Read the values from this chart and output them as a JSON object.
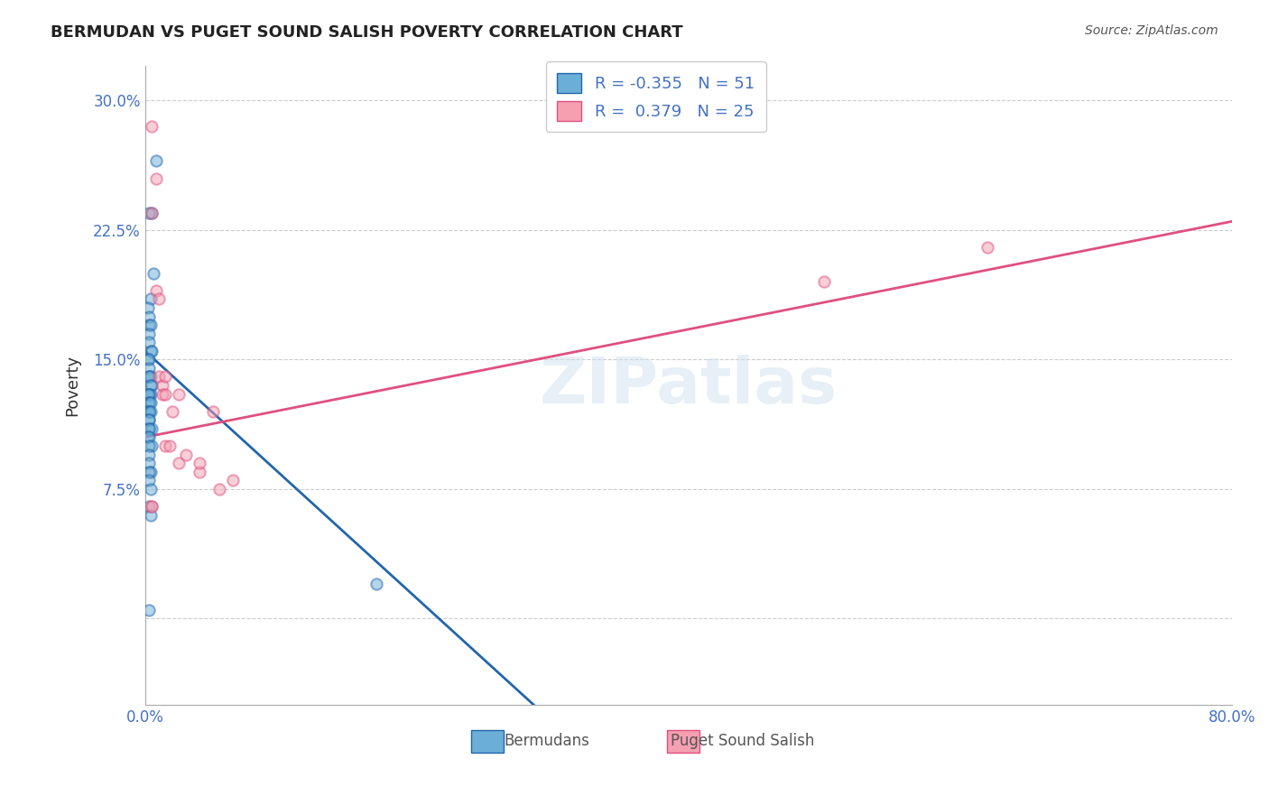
{
  "title": "BERMUDAN VS PUGET SOUND SALISH POVERTY CORRELATION CHART",
  "source": "Source: ZipAtlas.com",
  "xlabel": "",
  "ylabel": "Poverty",
  "xlim": [
    0.0,
    0.8
  ],
  "ylim": [
    -0.05,
    0.32
  ],
  "yticks": [
    0.0,
    0.075,
    0.15,
    0.225,
    0.3
  ],
  "ytick_labels": [
    "",
    "7.5%",
    "15.0%",
    "22.5%",
    "30.0%"
  ],
  "xtick_labels": [
    "0.0%",
    "",
    "",
    "",
    "",
    "",
    "",
    "",
    "80.0%"
  ],
  "legend_r1": "R = -0.355",
  "legend_n1": "N = 51",
  "legend_r2": "R =  0.379",
  "legend_n2": "N = 25",
  "watermark": "ZIPatlas",
  "blue_color": "#6baed6",
  "blue_line_color": "#2166ac",
  "pink_color": "#f4a0b0",
  "pink_line_color": "#e05080",
  "blue_scatter_x": [
    0.008,
    0.005,
    0.003,
    0.006,
    0.004,
    0.002,
    0.003,
    0.003,
    0.004,
    0.003,
    0.003,
    0.004,
    0.005,
    0.002,
    0.003,
    0.003,
    0.003,
    0.004,
    0.003,
    0.005,
    0.004,
    0.003,
    0.004,
    0.002,
    0.003,
    0.003,
    0.003,
    0.004,
    0.003,
    0.003,
    0.003,
    0.004,
    0.003,
    0.003,
    0.003,
    0.005,
    0.003,
    0.002,
    0.003,
    0.005,
    0.003,
    0.003,
    0.003,
    0.004,
    0.003,
    0.003,
    0.004,
    0.003,
    0.004,
    0.17,
    0.003
  ],
  "blue_scatter_y": [
    0.265,
    0.235,
    0.235,
    0.2,
    0.185,
    0.18,
    0.175,
    0.17,
    0.17,
    0.165,
    0.16,
    0.155,
    0.155,
    0.15,
    0.15,
    0.145,
    0.14,
    0.14,
    0.14,
    0.135,
    0.135,
    0.13,
    0.13,
    0.13,
    0.13,
    0.125,
    0.125,
    0.125,
    0.12,
    0.12,
    0.12,
    0.12,
    0.115,
    0.115,
    0.11,
    0.11,
    0.11,
    0.105,
    0.105,
    0.1,
    0.1,
    0.095,
    0.09,
    0.085,
    0.085,
    0.08,
    0.075,
    0.065,
    0.06,
    0.02,
    0.005
  ],
  "pink_scatter_x": [
    0.005,
    0.008,
    0.005,
    0.008,
    0.01,
    0.01,
    0.013,
    0.013,
    0.015,
    0.015,
    0.015,
    0.018,
    0.02,
    0.025,
    0.025,
    0.03,
    0.04,
    0.04,
    0.05,
    0.055,
    0.065,
    0.5,
    0.62,
    0.005,
    0.005
  ],
  "pink_scatter_y": [
    0.285,
    0.255,
    0.235,
    0.19,
    0.185,
    0.14,
    0.135,
    0.13,
    0.14,
    0.13,
    0.1,
    0.1,
    0.12,
    0.13,
    0.09,
    0.095,
    0.085,
    0.09,
    0.12,
    0.075,
    0.08,
    0.195,
    0.215,
    0.065,
    0.065
  ],
  "blue_line_x": [
    0.0,
    0.3
  ],
  "blue_line_y": [
    0.155,
    -0.06
  ],
  "pink_line_x": [
    0.0,
    0.8
  ],
  "pink_line_y": [
    0.105,
    0.23
  ],
  "grid_color": "#cccccc",
  "background_color": "#ffffff",
  "scatter_size": 80,
  "scatter_alpha": 0.5,
  "scatter_linewidth": 1.5
}
